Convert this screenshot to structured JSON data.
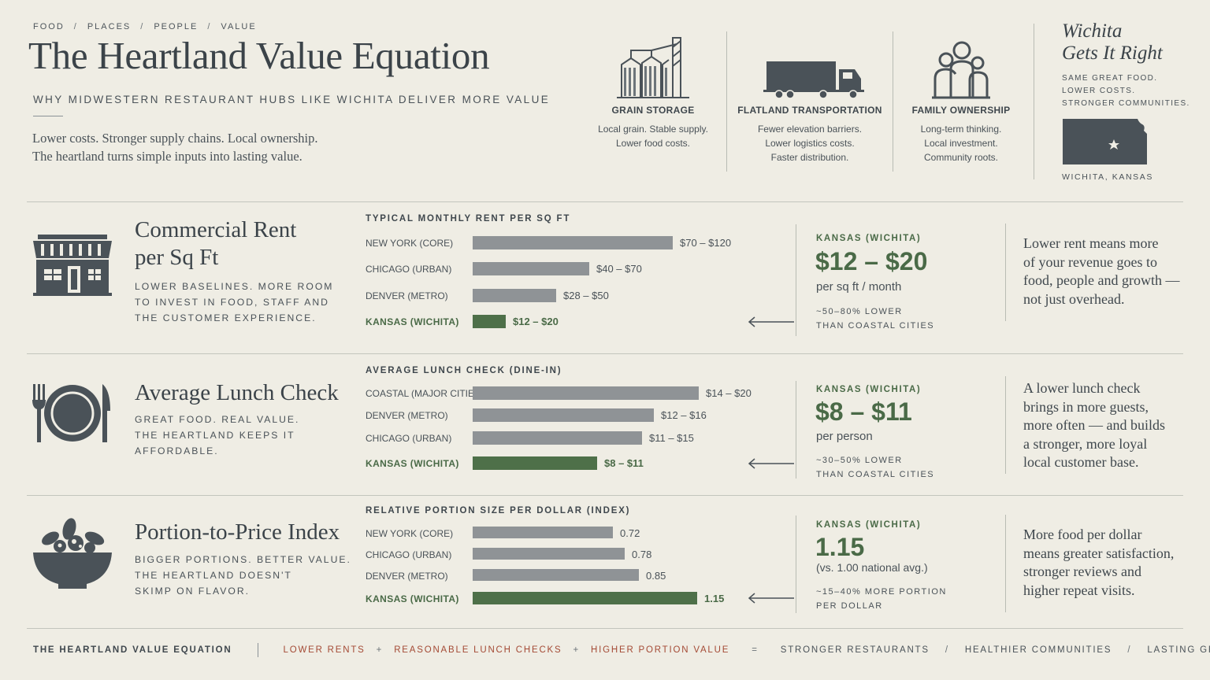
{
  "breadcrumb": [
    "FOOD",
    "PLACES",
    "PEOPLE",
    "VALUE"
  ],
  "header": {
    "title": "The Heartland Value Equation",
    "subtitle": "WHY MIDWESTERN RESTAURANT HUBS LIKE WICHITA DELIVER MORE VALUE",
    "intro_line1": "Lower costs. Stronger supply chains. Local ownership.",
    "intro_line2": "The heartland turns simple inputs into lasting value."
  },
  "pillars": [
    {
      "icon": "grain-silo-icon",
      "title": "GRAIN STORAGE",
      "lines": [
        "Local grain. Stable supply.",
        "Lower food costs."
      ]
    },
    {
      "icon": "truck-icon",
      "title": "FLATLAND TRANSPORTATION",
      "lines": [
        "Fewer elevation barriers.",
        "Lower logistics costs.",
        "Faster distribution."
      ]
    },
    {
      "icon": "family-icon",
      "title": "FAMILY OWNERSHIP",
      "lines": [
        "Long-term thinking.",
        "Local investment.",
        "Community roots."
      ]
    }
  ],
  "wichita": {
    "title_line1": "Wichita",
    "title_line2": "Gets It Right",
    "tag_lines": [
      "SAME GREAT FOOD.",
      "LOWER COSTS.",
      "STRONGER COMMUNITIES."
    ],
    "map_icon": "kansas-map-icon",
    "location": "WICHITA, KANSAS"
  },
  "rows": [
    {
      "icon": "storefront-icon",
      "title_lines": [
        "Commercial Rent",
        "per Sq Ft"
      ],
      "desc_lines": [
        "LOWER BASELINES. MORE ROOM",
        "TO INVEST IN FOOD, STAFF AND",
        "THE CUSTOMER EXPERIENCE."
      ],
      "kansas": {
        "label": "KANSAS (WICHITA)",
        "value": "$12 – $20",
        "unit": "per sq ft / month",
        "note_lines": [
          "~50–80% LOWER",
          "THAN COASTAL CITIES"
        ]
      },
      "quote_lines": [
        "Lower rent means more",
        "of your revenue goes to",
        "food, people and growth —",
        "not just overhead."
      ]
    },
    {
      "icon": "plate-fork-knife-icon",
      "title_lines": [
        "Average Lunch Check"
      ],
      "desc_lines": [
        "GREAT FOOD. REAL VALUE.",
        "THE HEARTLAND KEEPS IT",
        "AFFORDABLE."
      ],
      "kansas": {
        "label": "KANSAS (WICHITA)",
        "value": "$8 – $11",
        "unit": "per person",
        "note_lines": [
          "~30–50% LOWER",
          "THAN COASTAL CITIES"
        ]
      },
      "quote_lines": [
        "A lower lunch check",
        "brings in more guests,",
        "more often — and builds",
        "a stronger, more loyal",
        "local customer base."
      ]
    },
    {
      "icon": "salad-bowl-icon",
      "title_lines": [
        "Portion-to-Price Index"
      ],
      "desc_lines": [
        "BIGGER PORTIONS. BETTER VALUE.",
        "THE HEARTLAND DOESN'T",
        "SKIMP ON FLAVOR."
      ],
      "kansas": {
        "label": "KANSAS (WICHITA)",
        "value": "1.15",
        "unit": "(vs. 1.00 national avg.)",
        "note_lines": [
          "~15–40% MORE PORTION",
          "PER DOLLAR"
        ]
      },
      "quote_lines": [
        "More food per dollar",
        "means greater satisfaction,",
        "stronger reviews and",
        "higher repeat visits."
      ]
    }
  ],
  "chart_data": [
    {
      "type": "bar",
      "orientation": "horizontal",
      "title": "TYPICAL MONTHLY RENT PER SQ FT",
      "categories": [
        "NEW YORK (CORE)",
        "CHICAGO (URBAN)",
        "DENVER (METRO)",
        "KANSAS (WICHITA)"
      ],
      "value_labels": [
        "$70 – $120",
        "$40 – $70",
        "$28 – $50",
        "$12 – $20"
      ],
      "ranges": [
        [
          70,
          120
        ],
        [
          40,
          70
        ],
        [
          28,
          50
        ],
        [
          12,
          20
        ]
      ],
      "values": [
        120,
        70,
        50,
        20
      ],
      "highlight": "KANSAS (WICHITA)",
      "colors": {
        "bar": "#8f9396",
        "highlight": "#4e7049"
      }
    },
    {
      "type": "bar",
      "orientation": "horizontal",
      "title": "AVERAGE LUNCH CHECK (DINE-IN)",
      "categories": [
        "COASTAL (MAJOR CITIES)",
        "DENVER (METRO)",
        "CHICAGO (URBAN)",
        "KANSAS (WICHITA)"
      ],
      "value_labels": [
        "$14 – $20",
        "$12 – $16",
        "$11 – $15",
        "$8 – $11"
      ],
      "ranges": [
        [
          14,
          20
        ],
        [
          12,
          16
        ],
        [
          11,
          15
        ],
        [
          8,
          11
        ]
      ],
      "values": [
        20,
        16,
        15,
        11
      ],
      "highlight": "KANSAS (WICHITA)",
      "colors": {
        "bar": "#8f9396",
        "highlight": "#4e7049"
      }
    },
    {
      "type": "bar",
      "orientation": "horizontal",
      "title": "RELATIVE PORTION SIZE PER DOLLAR (INDEX)",
      "categories": [
        "NEW YORK (CORE)",
        "CHICAGO (URBAN)",
        "DENVER (METRO)",
        "KANSAS (WICHITA)"
      ],
      "value_labels": [
        "0.72",
        "0.78",
        "0.85",
        "1.15"
      ],
      "values": [
        0.72,
        0.78,
        0.85,
        1.15
      ],
      "highlight": "KANSAS (WICHITA)",
      "colors": {
        "bar": "#8f9396",
        "highlight": "#4e7049"
      }
    }
  ],
  "footer": {
    "title": "THE HEARTLAND VALUE EQUATION",
    "inputs": [
      "LOWER RENTS",
      "REASONABLE LUNCH CHECKS",
      "HIGHER PORTION VALUE"
    ],
    "plus": "+",
    "equals": "=",
    "outcomes": [
      "STRONGER RESTAURANTS",
      "HEALTHIER COMMUNITIES",
      "LASTING GROWTH"
    ],
    "slash": "/"
  },
  "colors": {
    "accent_green": "#4e7049",
    "accent_red": "#a44a35",
    "ink": "#3f474d",
    "background": "#efede4"
  }
}
